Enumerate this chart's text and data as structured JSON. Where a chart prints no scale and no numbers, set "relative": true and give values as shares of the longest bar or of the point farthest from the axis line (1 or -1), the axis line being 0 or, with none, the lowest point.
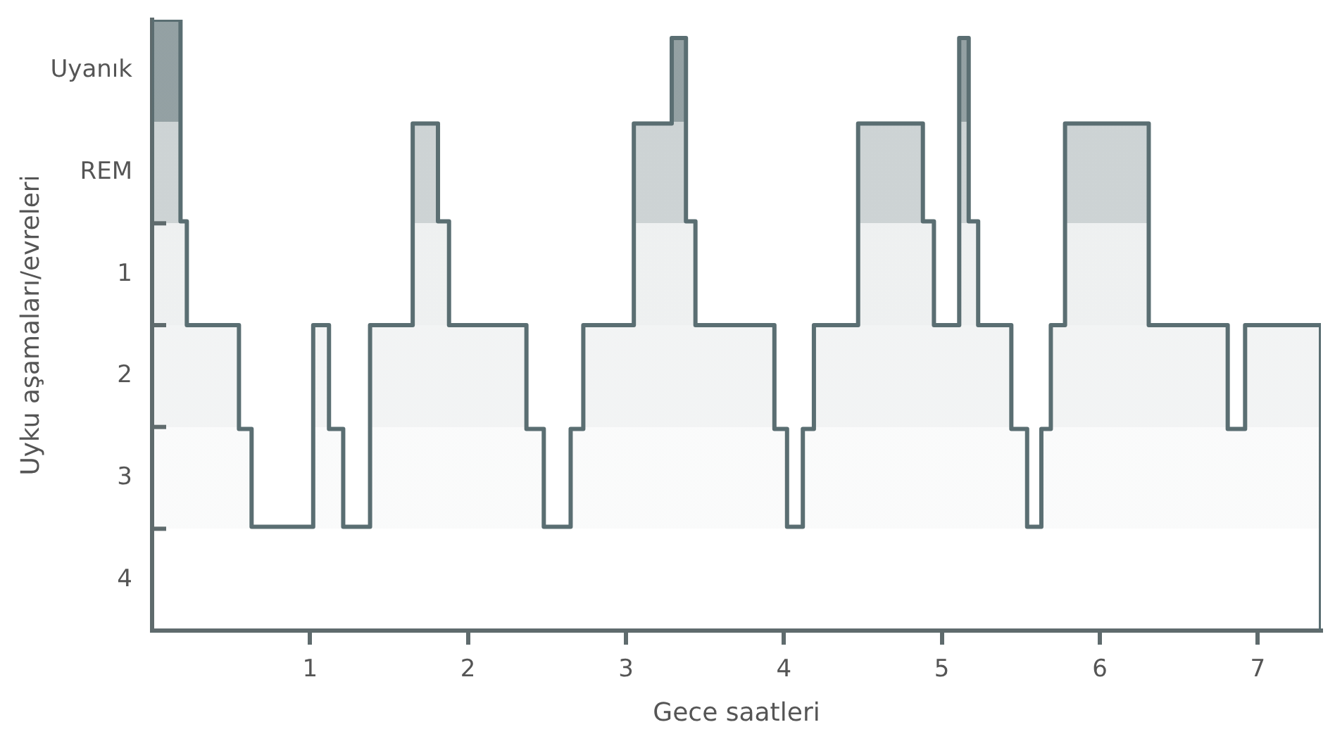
{
  "chart_data": {
    "type": "step",
    "xlabel": "Gece saatleri",
    "ylabel": "Uyku aşamaları/evreleri",
    "xlim": [
      0,
      7.4
    ],
    "xticks": [
      1,
      2,
      3,
      4,
      5,
      6,
      7
    ],
    "relative": true,
    "annotations": [
      "Uyanık",
      "REM",
      "1",
      "2",
      "3",
      "4"
    ],
    "grid": false,
    "legend": false,
    "marker": "none",
    "line_style": "solid",
    "series": [
      {
        "color": "#5a6e72",
        "x": [
          0,
          0.18,
          0.22,
          0.55,
          0.63,
          1.02,
          1.12,
          1.21,
          1.38,
          1.65,
          1.81,
          1.88,
          2.37,
          2.48,
          2.65,
          2.73,
          3.05,
          3.29,
          3.38,
          3.44,
          3.94,
          4.02,
          4.12,
          4.19,
          4.47,
          4.88,
          4.95,
          5.11,
          5.17,
          5.23,
          5.44,
          5.54,
          5.63,
          5.69,
          5.78,
          6.31,
          6.81,
          6.92,
          7.4
        ],
        "values": [
          1,
          0.67,
          0.5,
          0.33,
          0.17,
          0.5,
          0.33,
          0.17,
          0.5,
          0.83,
          0.67,
          0.5,
          0.33,
          0.17,
          0.33,
          0.5,
          0.83,
          0.97,
          0.67,
          0.5,
          0.33,
          0.17,
          0.33,
          0.5,
          0.83,
          0.67,
          0.5,
          0.97,
          0.67,
          0.5,
          0.33,
          0.17,
          0.33,
          0.5,
          0.83,
          0.5,
          0.33,
          0.5,
          0
        ]
      }
    ]
  }
}
